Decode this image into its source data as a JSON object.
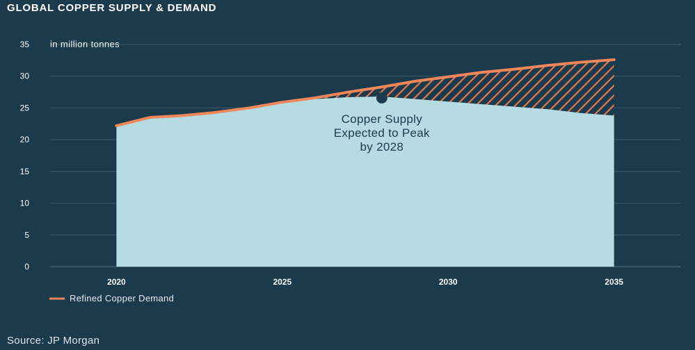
{
  "chart_data": {
    "type": "area",
    "title": "GLOBAL COPPER SUPPLY & DEMAND",
    "unit_label": "in million tonnes",
    "source": "Source: JP Morgan",
    "xlim": [
      2018,
      2037
    ],
    "ylim": [
      0,
      35
    ],
    "x_ticks": [
      2020,
      2025,
      2030,
      2035
    ],
    "y_ticks": [
      0,
      5,
      10,
      15,
      20,
      25,
      30,
      35
    ],
    "grid": true,
    "x": [
      2020,
      2021,
      2022,
      2023,
      2024,
      2025,
      2026,
      2027,
      2028,
      2029,
      2030,
      2031,
      2032,
      2033,
      2034,
      2035
    ],
    "series": [
      {
        "name": "",
        "kind": "area",
        "color": "#b5dbe3",
        "values": [
          22.2,
          23.4,
          23.8,
          24.3,
          25.0,
          25.8,
          26.4,
          26.7,
          26.8,
          26.4,
          26.0,
          25.6,
          25.2,
          24.8,
          24.2,
          23.8
        ]
      },
      {
        "name": "Refined Copper Demand",
        "kind": "line",
        "color": "#f0875a",
        "values": [
          22.2,
          23.5,
          23.8,
          24.3,
          25.0,
          25.9,
          26.6,
          27.5,
          28.3,
          29.2,
          29.9,
          30.6,
          31.1,
          31.7,
          32.2,
          32.6
        ]
      }
    ],
    "gap_hatch_color": "#e07850",
    "annotation": {
      "lines": [
        "Copper Supply",
        "Expected to Peak",
        "by 2028"
      ],
      "marker_x": 2028,
      "marker_y": 26.8
    },
    "legend": {
      "placement": "bottom-left",
      "entries": [
        "Refined Copper Demand"
      ]
    }
  }
}
